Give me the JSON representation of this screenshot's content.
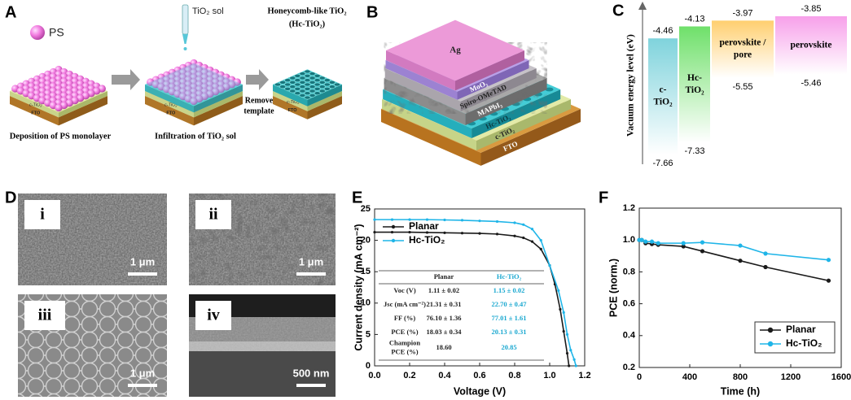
{
  "figure": {
    "panel_a": {
      "label": "A",
      "ps": "PS",
      "sol": "TiO₂ sol",
      "product": [
        "Honeycomb-like TiO₂",
        "(Hc-TiO₂)"
      ],
      "remove": [
        "Remove",
        "template"
      ],
      "captions": [
        "Deposition of PS monolayer",
        "Infiltration of TiO₂ sol"
      ],
      "layers": [
        "c-TiO₂",
        "FTO"
      ]
    },
    "panel_b": {
      "label": "B",
      "layers": [
        "Ag",
        "MoO₃",
        "Spiro-OMeTAD",
        "MAPbI₃",
        "Hc-TiO₂",
        "c-TiO₂",
        "FTO"
      ]
    },
    "panel_c": {
      "label": "C",
      "axis_label": "Vacuum energy level (eV)",
      "materials": [
        {
          "name": [
            "c-",
            "TiO₂"
          ],
          "top": -4.46,
          "bottom": -7.66,
          "color": "#7fd3dc"
        },
        {
          "name": [
            "Hc-",
            "TiO₂"
          ],
          "top": -4.13,
          "bottom": -7.33,
          "color": "#6fe06a"
        },
        {
          "name": [
            "perovskite /",
            "pore"
          ],
          "top": -3.97,
          "bottom": -5.55,
          "color": "#ffcf70"
        },
        {
          "name": [
            "perovskite"
          ],
          "top": -3.85,
          "bottom": -5.46,
          "color": "#f7a0ea"
        }
      ]
    },
    "panel_d": {
      "label": "D",
      "images": [
        {
          "label": "i",
          "scale": "1 μm"
        },
        {
          "label": "ii",
          "scale": "1 μm"
        },
        {
          "label": "iii",
          "scale": "1 μm"
        },
        {
          "label": "iv",
          "scale": "500 nm"
        }
      ]
    }
  },
  "chart_data": [
    {
      "type": "line",
      "panel_label": "E",
      "xlabel": "Voltage (V)",
      "ylabel": "Current density (mA cm⁻²)",
      "xlim": [
        0,
        1.2
      ],
      "xticks": [
        {
          "value": 0,
          "label": "0.0"
        },
        0.2,
        0.4,
        0.6,
        0.8,
        {
          "value": 1,
          "label": "1.0"
        },
        1.2
      ],
      "ylim": [
        0,
        25
      ],
      "yticks": [
        0,
        5,
        10,
        15,
        20,
        25
      ],
      "legend": "upper left",
      "series": [
        {
          "name": "Planar",
          "color": "#1a1a1a",
          "x": [
            0,
            0.1,
            0.2,
            0.3,
            0.4,
            0.5,
            0.6,
            0.7,
            0.8,
            0.85,
            0.9,
            0.95,
            1.0,
            1.03,
            1.06,
            1.08,
            1.1,
            1.11
          ],
          "values": [
            21.3,
            21.3,
            21.3,
            21.25,
            21.2,
            21.15,
            21.1,
            21.0,
            20.7,
            20.4,
            19.8,
            18.6,
            16.0,
            13.0,
            9.0,
            5.5,
            2.0,
            0
          ]
        },
        {
          "name": "Hc-TiO₂",
          "color": "#1fb5e8",
          "x": [
            0,
            0.1,
            0.2,
            0.3,
            0.4,
            0.5,
            0.6,
            0.7,
            0.8,
            0.85,
            0.9,
            0.95,
            1.0,
            1.05,
            1.08,
            1.1,
            1.12,
            1.14,
            1.15
          ],
          "values": [
            23.3,
            23.3,
            23.3,
            23.3,
            23.25,
            23.2,
            23.1,
            23.0,
            22.8,
            22.5,
            21.8,
            20.0,
            16.0,
            12.0,
            8.5,
            5.0,
            2.5,
            1.0,
            0
          ]
        }
      ],
      "table": {
        "header": [
          "Planar",
          "Hc-TiO₂"
        ],
        "rows": [
          [
            "Voc (V)",
            "1.11 ± 0.02",
            "1.15 ± 0.02"
          ],
          [
            "Jsc (mA cm⁻²)",
            "21.31 ± 0.31",
            "22.70 ± 0.47"
          ],
          [
            "FF (%)",
            "76.10 ± 1.36",
            "77.01 ± 1.61"
          ],
          [
            "PCE (%)",
            "18.03 ± 0.34",
            "20.13 ± 0.31"
          ],
          [
            [
              "Champion",
              "PCE (%)"
            ],
            "18.60",
            "20.85"
          ]
        ]
      }
    },
    {
      "type": "line",
      "panel_label": "F",
      "xlabel": "Time (h)",
      "ylabel": "PCE (norm.)",
      "xlim": [
        0,
        1600
      ],
      "xticks": [
        0,
        400,
        800,
        1200,
        1600
      ],
      "ylim": [
        0.2,
        1.2
      ],
      "yticks": [
        0.2,
        0.4,
        0.6,
        0.8,
        {
          "value": 1,
          "label": "1.0"
        },
        1.2
      ],
      "legend": "lower right",
      "series": [
        {
          "name": "Planar",
          "color": "#1a1a1a",
          "x": [
            0,
            20,
            50,
            100,
            150,
            350,
            500,
            800,
            1000,
            1500
          ],
          "values": [
            1.0,
            1.0,
            0.98,
            0.975,
            0.97,
            0.96,
            0.93,
            0.87,
            0.83,
            0.745
          ]
        },
        {
          "name": "Hc-TiO₂",
          "color": "#1fb5e8",
          "x": [
            0,
            20,
            50,
            100,
            150,
            350,
            500,
            800,
            1000,
            1500
          ],
          "values": [
            1.0,
            1.0,
            0.99,
            0.99,
            0.98,
            0.98,
            0.985,
            0.965,
            0.915,
            0.875
          ]
        }
      ]
    }
  ]
}
